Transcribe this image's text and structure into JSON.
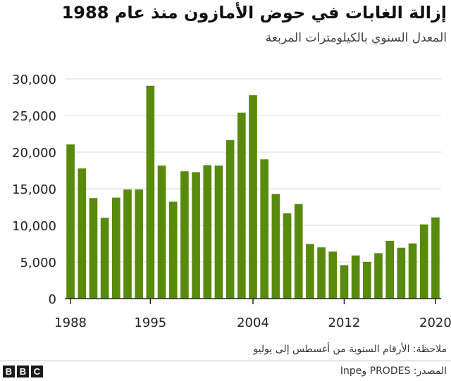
{
  "header": {
    "title": "إزالة الغابات في حوض الأمازون منذ عام 1988",
    "subtitle": "المعدل السنوي بالكيلومترات المربعة"
  },
  "footer": {
    "note": "ملاحظة: الأرقام السنوية من أغسطس إلى يوليو",
    "source": "المصدر: PRODES وInpe",
    "logo": [
      "B",
      "B",
      "C"
    ]
  },
  "colors": {
    "bar": "#588a0c",
    "grid": "#d9d9d9",
    "axis": "#222222"
  },
  "chart_data": {
    "type": "bar",
    "title": "إزالة الغابات في حوض الأمازون منذ عام 1988",
    "subtitle": "المعدل السنوي بالكيلومترات المربعة",
    "xlabel": "",
    "ylabel": "",
    "ylim": [
      0,
      30000
    ],
    "yticks": [
      0,
      5000,
      10000,
      15000,
      20000,
      25000,
      30000
    ],
    "ytick_labels": [
      "0",
      "5,000",
      "10,000",
      "15,000",
      "20,000",
      "25,000",
      "30,000"
    ],
    "xticks": [
      1988,
      1995,
      2004,
      2012,
      2020
    ],
    "xtick_labels": [
      "1988",
      "1995",
      "2004",
      "2012",
      "2020"
    ],
    "grid": true,
    "categories": [
      1988,
      1989,
      1990,
      1991,
      1992,
      1993,
      1994,
      1995,
      1996,
      1997,
      1998,
      1999,
      2000,
      2001,
      2002,
      2003,
      2004,
      2005,
      2006,
      2007,
      2008,
      2009,
      2010,
      2011,
      2012,
      2013,
      2014,
      2015,
      2016,
      2017,
      2018,
      2019,
      2020
    ],
    "values": [
      21050,
      17770,
      13730,
      11030,
      13786,
      14896,
      14896,
      29059,
      18161,
      13227,
      17383,
      17259,
      18226,
      18165,
      21651,
      25396,
      27772,
      19014,
      14286,
      11651,
      12911,
      7464,
      7000,
      6418,
      4571,
      5891,
      5012,
      6207,
      7893,
      6947,
      7536,
      10129,
      11088
    ]
  }
}
